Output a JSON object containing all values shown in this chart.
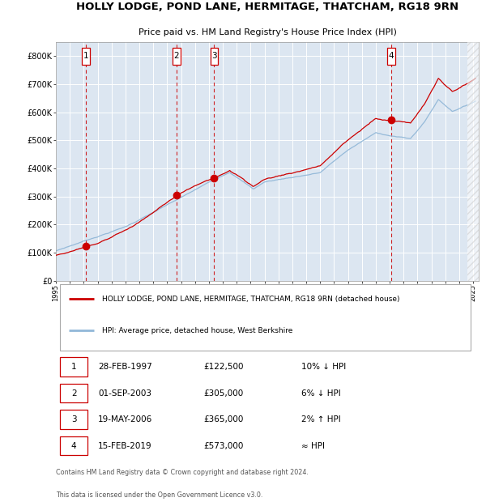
{
  "title": "HOLLY LODGE, POND LANE, HERMITAGE, THATCHAM, RG18 9RN",
  "subtitle": "Price paid vs. HM Land Registry's House Price Index (HPI)",
  "bg_color": "#dce6f1",
  "hpi_color": "#92b8d8",
  "property_color": "#cc0000",
  "transactions": [
    {
      "num": 1,
      "date_num": 1997.16,
      "price": 122500
    },
    {
      "num": 2,
      "date_num": 2003.67,
      "price": 305000
    },
    {
      "num": 3,
      "date_num": 2006.38,
      "price": 365000
    },
    {
      "num": 4,
      "date_num": 2019.12,
      "price": 573000
    }
  ],
  "legend_property": "HOLLY LODGE, POND LANE, HERMITAGE, THATCHAM, RG18 9RN (detached house)",
  "legend_hpi": "HPI: Average price, detached house, West Berkshire",
  "footer1": "Contains HM Land Registry data © Crown copyright and database right 2024.",
  "footer2": "This data is licensed under the Open Government Licence v3.0.",
  "ylim": [
    0,
    850000
  ],
  "yticks": [
    0,
    100000,
    200000,
    300000,
    400000,
    500000,
    600000,
    700000,
    800000
  ],
  "ytick_labels": [
    "£0",
    "£100K",
    "£200K",
    "£300K",
    "£400K",
    "£500K",
    "£600K",
    "£700K",
    "£800K"
  ],
  "table_rows": [
    {
      "num": "1",
      "date": "28-FEB-1997",
      "price": "£122,500",
      "rel": "10% ↓ HPI"
    },
    {
      "num": "2",
      "date": "01-SEP-2003",
      "price": "£305,000",
      "rel": "6% ↓ HPI"
    },
    {
      "num": "3",
      "date": "19-MAY-2006",
      "price": "£365,000",
      "rel": "2% ↑ HPI"
    },
    {
      "num": "4",
      "date": "15-FEB-2019",
      "price": "£573,000",
      "rel": "≈ HPI"
    }
  ]
}
